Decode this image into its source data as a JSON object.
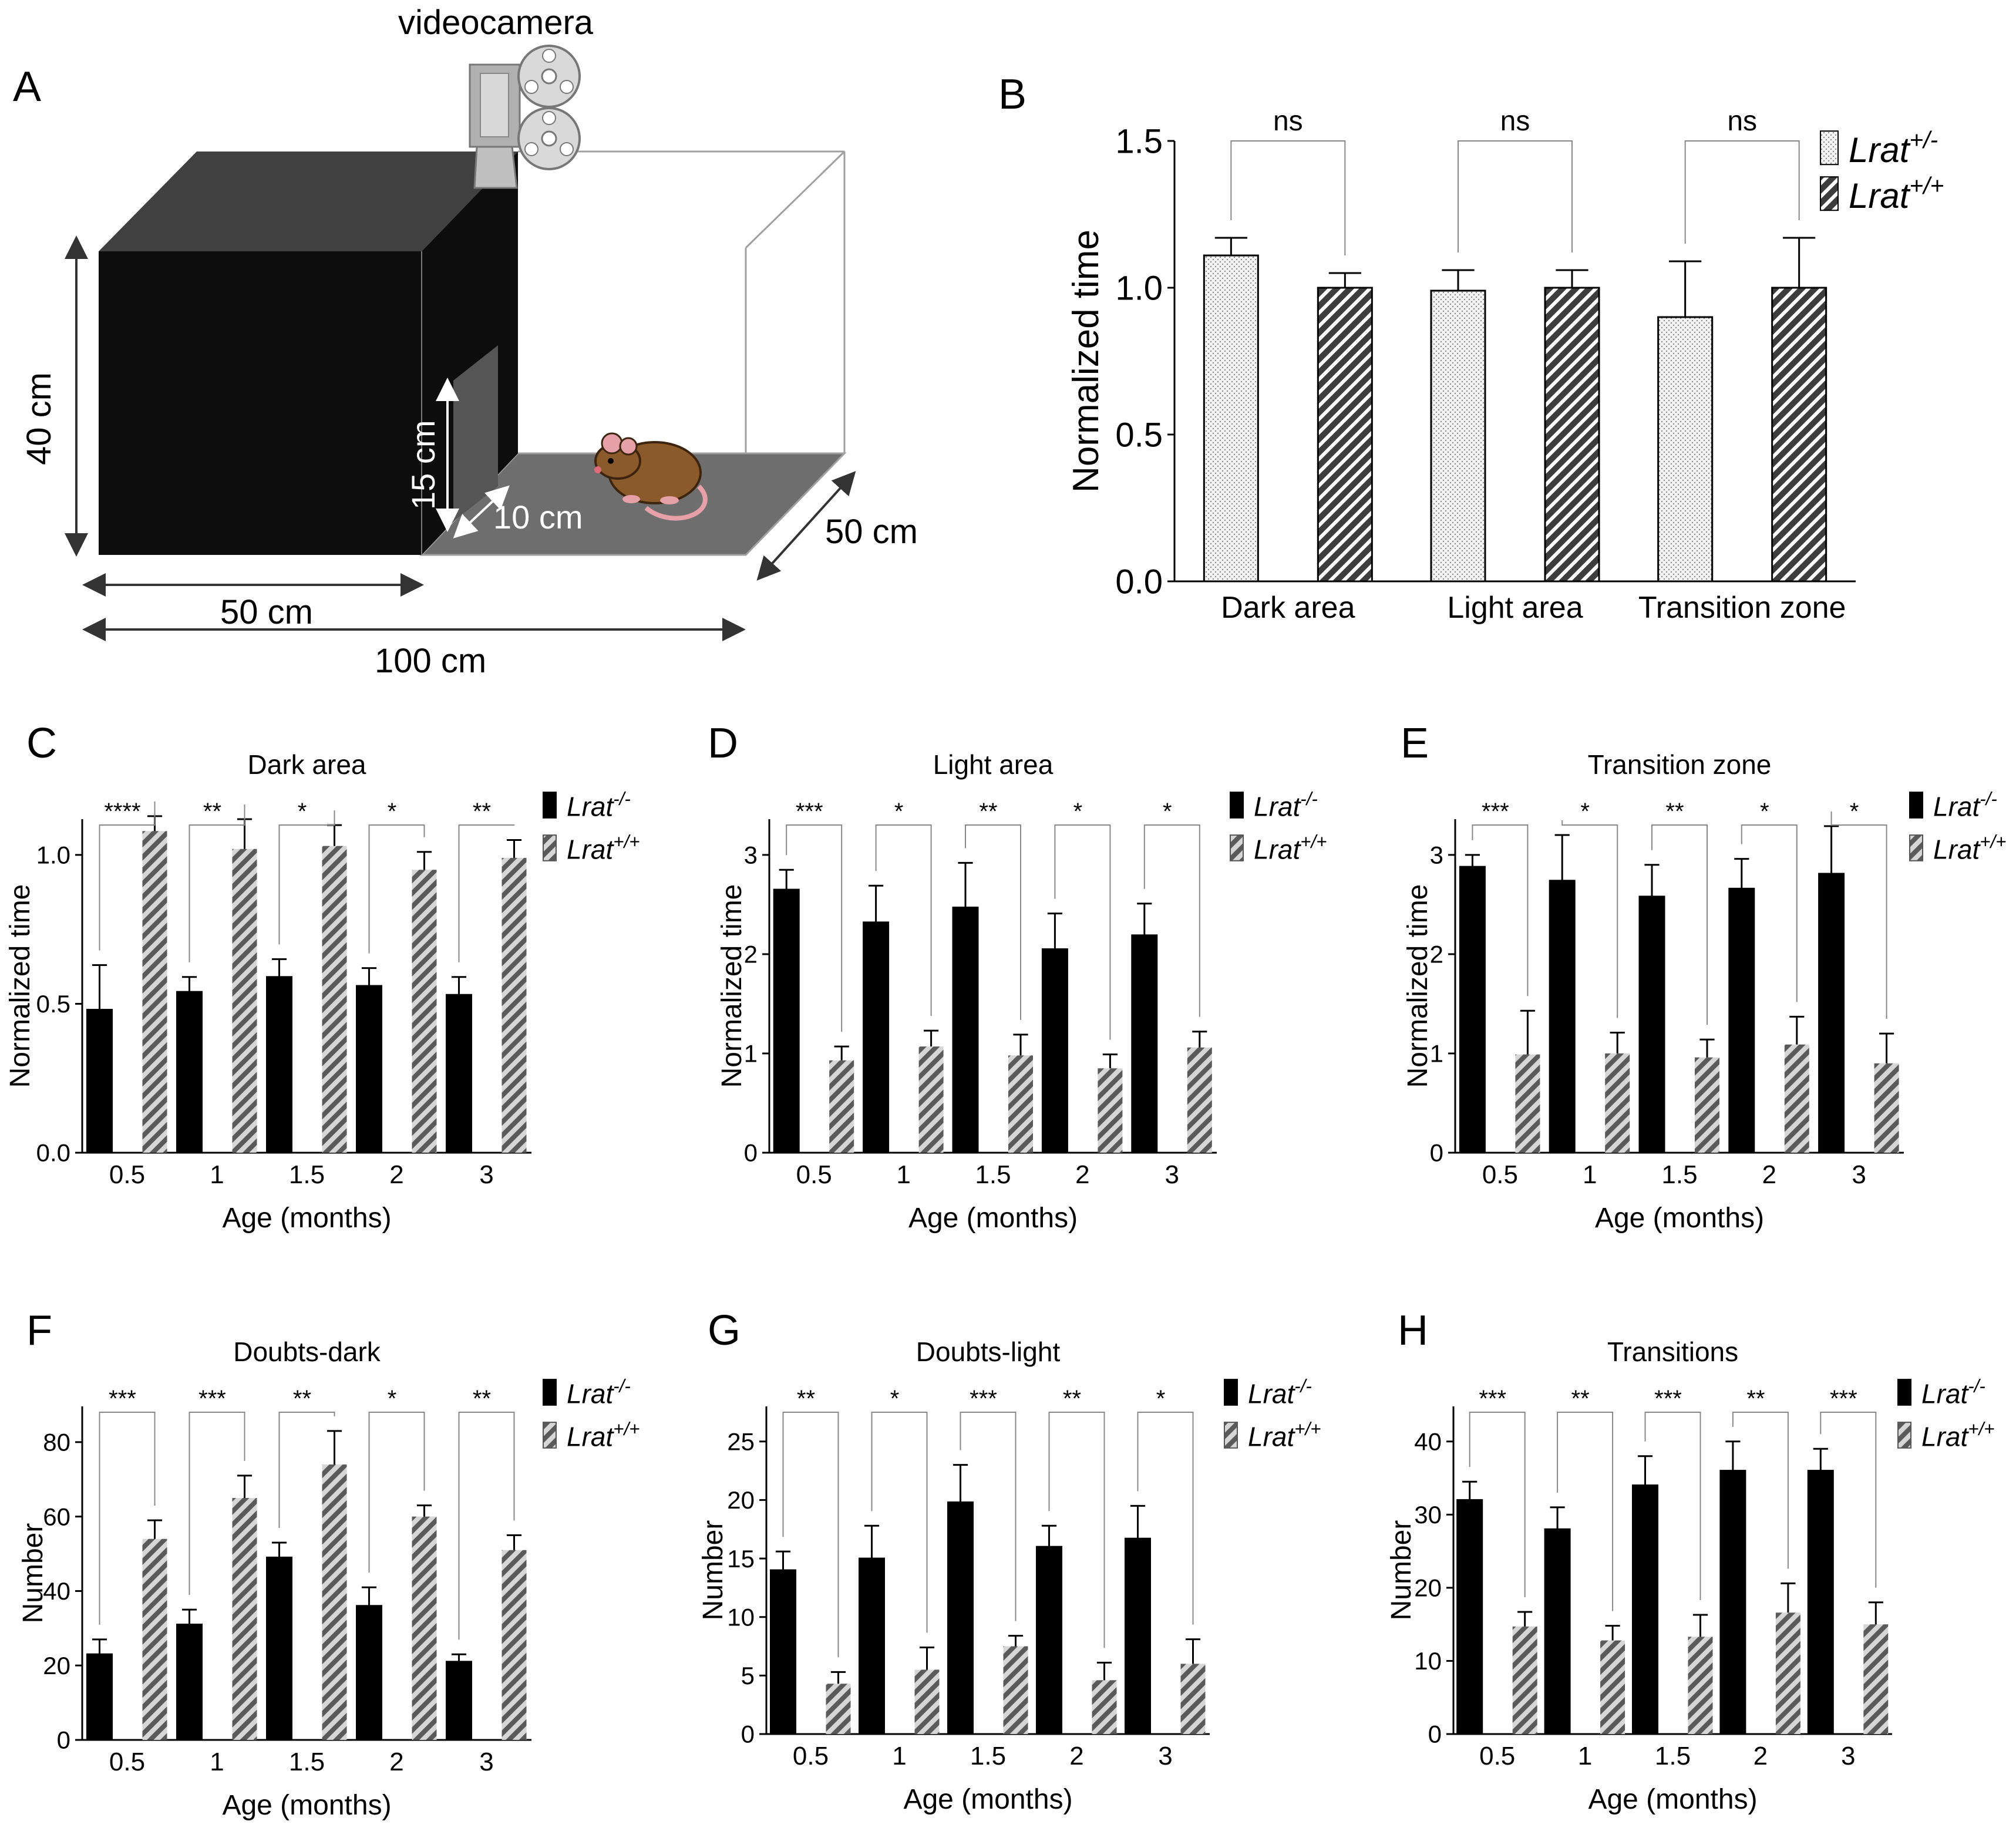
{
  "panel_letters": [
    "A",
    "B",
    "C",
    "D",
    "E",
    "F",
    "G",
    "H"
  ],
  "diagram": {
    "camera_label": "videocamera",
    "height_label": "40 cm",
    "door_height_label": "15 cm",
    "door_width_label": "10 cm",
    "depth_label": "50 cm",
    "dark_width_label": "50 cm",
    "total_width_label": "100 cm"
  },
  "colors": {
    "black_bar": "#000000",
    "hatch_dark": "#4d4d4d",
    "hatch_light": "#bfbfbf",
    "dotted_fill": "#ececec",
    "box_dark": "#0d0d0d",
    "box_top": "#404040",
    "floor": "#6e6e6e"
  },
  "chart_data": [
    {
      "panel": "B",
      "type": "bar",
      "title": "",
      "ylabel": "Normalized time",
      "xlabel": "",
      "ylim": [
        0,
        1.5
      ],
      "yticks": [
        "0.0",
        "0.5",
        "1.0",
        "1.5"
      ],
      "categories": [
        "Dark area",
        "Light area",
        "Transition zone"
      ],
      "series": [
        {
          "name": "Lrat",
          "sup": "+/-",
          "style": "dotted",
          "values": [
            1.11,
            0.99,
            0.9
          ],
          "errors": [
            0.06,
            0.07,
            0.19
          ]
        },
        {
          "name": "Lrat",
          "sup": "+/+",
          "style": "hatch-dark",
          "values": [
            1.0,
            1.0,
            1.0
          ],
          "errors": [
            0.05,
            0.06,
            0.17
          ]
        }
      ],
      "significance": [
        "ns",
        "ns",
        "ns"
      ]
    },
    {
      "panel": "C",
      "type": "bar",
      "title": "Dark area",
      "ylabel": "Normalized time",
      "xlabel": "Age (months)",
      "ylim": [
        0,
        1.0
      ],
      "yticks": [
        "0.0",
        "0.5",
        "1.0"
      ],
      "categories": [
        "0.5",
        "1",
        "1.5",
        "2",
        "3"
      ],
      "series": [
        {
          "name": "Lrat",
          "sup": "-/-",
          "style": "black",
          "values": [
            0.48,
            0.54,
            0.59,
            0.56,
            0.53
          ],
          "errors": [
            0.15,
            0.05,
            0.06,
            0.06,
            0.06
          ]
        },
        {
          "name": "Lrat",
          "sup": "+/+",
          "style": "hatch",
          "values": [
            1.08,
            1.02,
            1.03,
            0.95,
            0.99
          ],
          "errors": [
            0.05,
            0.1,
            0.07,
            0.06,
            0.06
          ]
        }
      ],
      "significance": [
        "****",
        "**",
        "*",
        "*",
        "**"
      ]
    },
    {
      "panel": "D",
      "type": "bar",
      "title": "Light area",
      "ylabel": "Normalized time",
      "xlabel": "Age (months)",
      "ylim": [
        0,
        3
      ],
      "yticks": [
        "0",
        "1",
        "2",
        "3"
      ],
      "categories": [
        "0.5",
        "1",
        "1.5",
        "2",
        "3"
      ],
      "series": [
        {
          "name": "Lrat",
          "sup": "-/-",
          "style": "black",
          "values": [
            2.65,
            2.32,
            2.47,
            2.05,
            2.19
          ],
          "errors": [
            0.2,
            0.37,
            0.45,
            0.36,
            0.32
          ]
        },
        {
          "name": "Lrat",
          "sup": "+/+",
          "style": "hatch",
          "values": [
            0.93,
            1.07,
            0.98,
            0.85,
            1.06
          ],
          "errors": [
            0.14,
            0.16,
            0.21,
            0.14,
            0.16
          ]
        }
      ],
      "significance": [
        "***",
        "*",
        "**",
        "*",
        "*"
      ]
    },
    {
      "panel": "E",
      "type": "bar",
      "title": "Transition zone",
      "ylabel": "Normalized time",
      "xlabel": "Age (months)",
      "ylim": [
        0,
        3
      ],
      "yticks": [
        "0",
        "1",
        "2",
        "3"
      ],
      "categories": [
        "0.5",
        "1",
        "1.5",
        "2",
        "3"
      ],
      "series": [
        {
          "name": "Lrat",
          "sup": "-/-",
          "style": "black",
          "values": [
            2.88,
            2.74,
            2.58,
            2.66,
            2.81
          ],
          "errors": [
            0.12,
            0.46,
            0.32,
            0.3,
            0.48
          ]
        },
        {
          "name": "Lrat",
          "sup": "+/+",
          "style": "hatch",
          "values": [
            0.99,
            1.0,
            0.96,
            1.09,
            0.9
          ],
          "errors": [
            0.44,
            0.21,
            0.18,
            0.28,
            0.3
          ]
        }
      ],
      "significance": [
        "***",
        "*",
        "**",
        "*",
        "*"
      ]
    },
    {
      "panel": "F",
      "type": "bar",
      "title": "Doubts-dark",
      "ylabel": "Number",
      "xlabel": "Age (months)",
      "ylim": [
        0,
        80
      ],
      "yticks": [
        "0",
        "20",
        "40",
        "60",
        "80"
      ],
      "categories": [
        "0.5",
        "1",
        "1.5",
        "2",
        "3"
      ],
      "series": [
        {
          "name": "Lrat",
          "sup": "-/-",
          "style": "black",
          "values": [
            23,
            31,
            49,
            36,
            21
          ],
          "errors": [
            4,
            4,
            4,
            5,
            2
          ]
        },
        {
          "name": "Lrat",
          "sup": "+/+",
          "style": "hatch",
          "values": [
            54,
            65,
            74,
            60,
            51
          ],
          "errors": [
            5,
            6,
            9,
            3,
            4
          ]
        }
      ],
      "significance": [
        "***",
        "***",
        "**",
        "*",
        "**"
      ]
    },
    {
      "panel": "G",
      "type": "bar",
      "title": "Doubts-light",
      "ylabel": "Number",
      "xlabel": "Age (months)",
      "ylim": [
        0,
        25
      ],
      "yticks": [
        "0",
        "5",
        "10",
        "15",
        "20",
        "25"
      ],
      "categories": [
        "0.5",
        "1",
        "1.5",
        "2",
        "3"
      ],
      "series": [
        {
          "name": "Lrat",
          "sup": "-/-",
          "style": "black",
          "values": [
            14.0,
            15.0,
            19.8,
            16.0,
            16.7
          ],
          "errors": [
            1.6,
            2.8,
            3.2,
            1.8,
            2.8
          ]
        },
        {
          "name": "Lrat",
          "sup": "+/+",
          "style": "hatch",
          "values": [
            4.3,
            5.5,
            7.5,
            4.6,
            6.0
          ],
          "errors": [
            1.0,
            1.9,
            0.9,
            1.5,
            2.1
          ]
        }
      ],
      "significance": [
        "**",
        "*",
        "***",
        "**",
        "*"
      ]
    },
    {
      "panel": "H",
      "type": "bar",
      "title": "Transitions",
      "ylabel": "Number",
      "xlabel": "Age (months)",
      "ylim": [
        0,
        40
      ],
      "yticks": [
        "0",
        "10",
        "20",
        "30",
        "40"
      ],
      "categories": [
        "0.5",
        "1",
        "1.5",
        "2",
        "3"
      ],
      "series": [
        {
          "name": "Lrat",
          "sup": "-/-",
          "style": "black",
          "values": [
            32,
            28,
            34,
            36,
            36
          ],
          "errors": [
            2.5,
            3,
            4,
            4,
            3
          ]
        },
        {
          "name": "Lrat",
          "sup": "+/+",
          "style": "hatch",
          "values": [
            14.7,
            12.8,
            13.3,
            16.6,
            15.0
          ],
          "errors": [
            2,
            2,
            3,
            4,
            3
          ]
        }
      ],
      "significance": [
        "***",
        "**",
        "***",
        "**",
        "***"
      ]
    }
  ]
}
